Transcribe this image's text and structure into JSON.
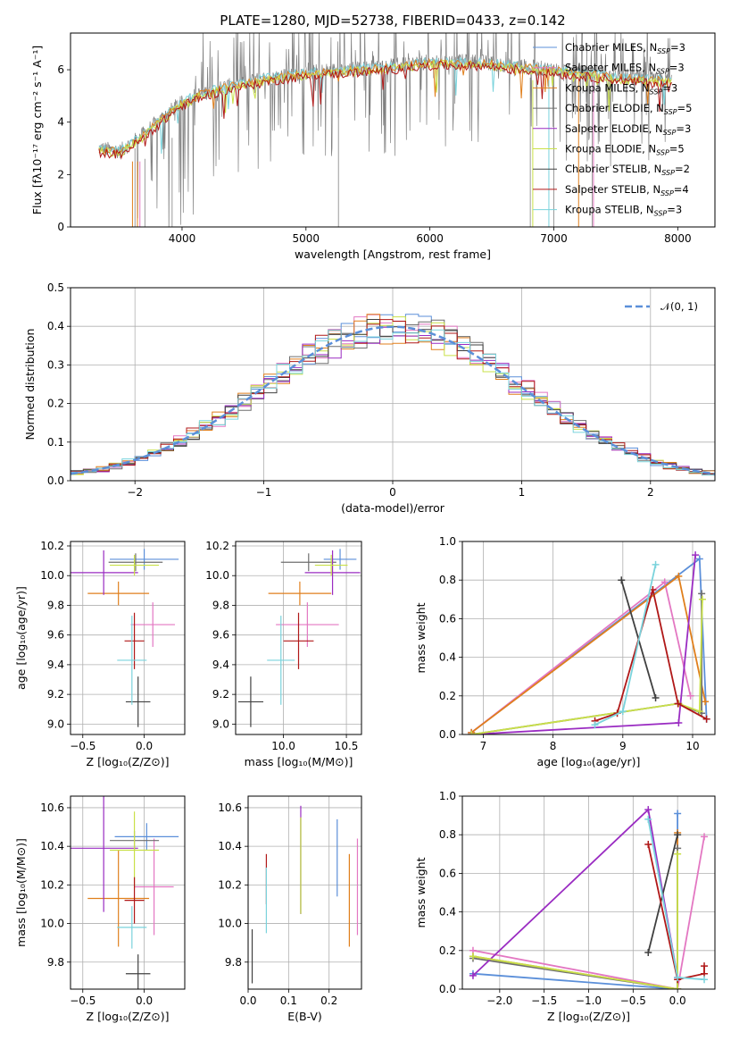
{
  "colors": {
    "c1": "#5b8fd9",
    "c2": "#e377c2",
    "c3": "#e07f1c",
    "c4": "#6f6f6f",
    "c5": "#9a2cc2",
    "c6": "#c9e048",
    "c7": "#404040",
    "c8": "#b01818",
    "c9": "#7ad3dc",
    "flux": "#808080"
  },
  "chart_data": [
    {
      "id": "spectrum",
      "type": "line",
      "title": "PLATE=1280, MJD=52738, FIBERID=0433, z=0.142",
      "xlabel": "wavelength [Angstrom, rest frame]",
      "ylabel": "Flux [fλ10⁻¹⁷ erg cm⁻² s⁻¹ A⁻¹]",
      "xlim": [
        3100,
        8300
      ],
      "ylim": [
        0,
        7.4
      ],
      "xticks": [
        4000,
        5000,
        6000,
        7000,
        8000
      ],
      "yticks": [
        0,
        2,
        4,
        6
      ],
      "continuum": [
        [
          3330,
          3.0
        ],
        [
          3500,
          2.9
        ],
        [
          3650,
          3.4
        ],
        [
          3800,
          4.0
        ],
        [
          3950,
          4.6
        ],
        [
          4100,
          5.0
        ],
        [
          4300,
          5.3
        ],
        [
          4500,
          5.5
        ],
        [
          4700,
          5.7
        ],
        [
          5000,
          5.9
        ],
        [
          5300,
          6.0
        ],
        [
          5600,
          6.1
        ],
        [
          6000,
          6.3
        ],
        [
          6400,
          6.3
        ],
        [
          6800,
          6.1
        ],
        [
          7200,
          5.9
        ],
        [
          7600,
          5.7
        ],
        [
          7900,
          5.6
        ]
      ],
      "legend": [
        {
          "label": "Chabrier MILES, N",
          "sub": "SSP",
          "suffix": "=3",
          "color_key": "c1"
        },
        {
          "label": "Salpeter MILES, N",
          "sub": "SSP",
          "suffix": "=3",
          "color_key": "c2"
        },
        {
          "label": "Kroupa MILES, N",
          "sub": "SSP",
          "suffix": "=3",
          "color_key": "c3"
        },
        {
          "label": "Chabrier ELODIE, N",
          "sub": "SSP",
          "suffix": "=5",
          "color_key": "c4"
        },
        {
          "label": "Salpeter ELODIE, N",
          "sub": "SSP",
          "suffix": "=3",
          "color_key": "c5"
        },
        {
          "label": "Kroupa ELODIE, N",
          "sub": "SSP",
          "suffix": "=5",
          "color_key": "c6"
        },
        {
          "label": "Chabrier STELIB, N",
          "sub": "SSP",
          "suffix": "=2",
          "color_key": "c7"
        },
        {
          "label": "Salpeter STELIB, N",
          "sub": "SSP",
          "suffix": "=4",
          "color_key": "c8"
        },
        {
          "label": "Kroupa STELIB, N",
          "sub": "SSP",
          "suffix": "=3",
          "color_key": "c9"
        }
      ]
    },
    {
      "id": "residuals",
      "type": "histogram",
      "xlabel": "(data-model)/error",
      "ylabel": "Normed distribution",
      "xlim": [
        -2.5,
        2.5
      ],
      "ylim": [
        0,
        0.5
      ],
      "xticks": [
        -2,
        -1,
        0,
        1,
        2
      ],
      "xticklabels": [
        "−2",
        "−1",
        "0",
        "1",
        "2"
      ],
      "yticks": [
        0,
        0.1,
        0.2,
        0.3,
        0.4,
        0.5
      ],
      "yticklabels": [
        "0.0",
        "0.1",
        "0.2",
        "0.3",
        "0.4",
        "0.5"
      ],
      "legend_label": "𝒩(0, 1)",
      "bin_start": -2.5,
      "bin_width": 0.1,
      "gaussian": {
        "mean": 0,
        "sigma": 1
      }
    },
    {
      "id": "age_vs_Z",
      "type": "errorbar",
      "xlabel": "Z [log₁₀(Z/Z⊙)]",
      "ylabel": "age  [log₁₀(age/yr)]",
      "xlim": [
        -0.6,
        0.33
      ],
      "ylim": [
        8.93,
        10.23
      ],
      "xticks": [
        -0.5,
        0.0
      ],
      "xticklabels": [
        "−0.5",
        "0.0"
      ],
      "yticks": [
        9.0,
        9.2,
        9.4,
        9.6,
        9.8,
        10.0,
        10.2
      ],
      "points": [
        {
          "c": "c1",
          "x": 0.0,
          "xe": 0.28,
          "y": 10.11,
          "ye": 0.07
        },
        {
          "c": "c2",
          "x": 0.07,
          "xe": 0.18,
          "y": 9.67,
          "ye": 0.15
        },
        {
          "c": "c3",
          "x": -0.21,
          "xe": 0.25,
          "y": 9.88,
          "ye": 0.08
        },
        {
          "c": "c4",
          "x": -0.07,
          "xe": 0.22,
          "y": 10.09,
          "ye": 0.06
        },
        {
          "c": "c5",
          "x": -0.33,
          "xe": 0.28,
          "y": 10.02,
          "ye": 0.15
        },
        {
          "c": "c6",
          "x": -0.08,
          "xe": 0.2,
          "y": 10.07,
          "ye": 0.07
        },
        {
          "c": "c7",
          "x": -0.05,
          "xe": 0.1,
          "y": 9.15,
          "ye": 0.17
        },
        {
          "c": "c8",
          "x": -0.08,
          "xe": 0.08,
          "y": 9.56,
          "ye": 0.19
        },
        {
          "c": "c9",
          "x": -0.1,
          "xe": 0.12,
          "y": 9.43,
          "ye": 0.3
        }
      ]
    },
    {
      "id": "age_vs_mass",
      "type": "errorbar",
      "xlabel": "mass [log₁₀(M/M⊙)]",
      "xlim": [
        9.62,
        10.62
      ],
      "ylim": [
        8.93,
        10.23
      ],
      "xticks": [
        10.0,
        10.5
      ],
      "xticklabels": [
        "10.0",
        "10.5"
      ],
      "yticks": [
        9.0,
        9.2,
        9.4,
        9.6,
        9.8,
        10.0,
        10.2
      ],
      "points": [
        {
          "c": "c1",
          "x": 10.45,
          "xe": 0.13,
          "y": 10.11,
          "ye": 0.07
        },
        {
          "c": "c2",
          "x": 10.19,
          "xe": 0.25,
          "y": 9.67,
          "ye": 0.15
        },
        {
          "c": "c3",
          "x": 10.13,
          "xe": 0.25,
          "y": 9.88,
          "ye": 0.08
        },
        {
          "c": "c4",
          "x": 10.2,
          "xe": 0.22,
          "y": 10.09,
          "ye": 0.06
        },
        {
          "c": "c5",
          "x": 10.39,
          "xe": 0.22,
          "y": 10.02,
          "ye": 0.15
        },
        {
          "c": "c6",
          "x": 10.38,
          "xe": 0.13,
          "y": 10.07,
          "ye": 0.07
        },
        {
          "c": "c7",
          "x": 9.74,
          "xe": 0.1,
          "y": 9.15,
          "ye": 0.17
        },
        {
          "c": "c8",
          "x": 10.12,
          "xe": 0.12,
          "y": 9.56,
          "ye": 0.19
        },
        {
          "c": "c9",
          "x": 9.98,
          "xe": 0.11,
          "y": 9.43,
          "ye": 0.3
        }
      ]
    },
    {
      "id": "weight_vs_age",
      "type": "line",
      "xlabel": "age  [log₁₀(age/yr)]",
      "ylabel": "mass weight",
      "xlim": [
        6.7,
        10.32
      ],
      "ylim": [
        0,
        1
      ],
      "xticks": [
        7,
        8,
        9,
        10
      ],
      "xticklabels": [
        "7",
        "8",
        "9",
        "10"
      ],
      "yticks": [
        0,
        0.2,
        0.4,
        0.6,
        0.8,
        1.0
      ],
      "yticklabels": [
        "0.0",
        "0.2",
        "0.4",
        "0.6",
        "0.8",
        "1.0"
      ],
      "series": [
        {
          "c": "c1",
          "x": [
            6.83,
            10.1,
            10.2
          ],
          "y": [
            0.01,
            0.91,
            0.08
          ]
        },
        {
          "c": "c2",
          "x": [
            6.83,
            9.6,
            9.97
          ],
          "y": [
            0.01,
            0.79,
            0.2
          ]
        },
        {
          "c": "c3",
          "x": [
            6.83,
            9.8,
            10.18
          ],
          "y": [
            0.01,
            0.82,
            0.17
          ]
        },
        {
          "c": "c4",
          "x": [
            6.83,
            9.8,
            10.13,
            10.13
          ],
          "y": [
            0.0,
            0.16,
            0.11,
            0.73
          ]
        },
        {
          "c": "c5",
          "x": [
            6.83,
            9.8,
            10.04
          ],
          "y": [
            0.0,
            0.06,
            0.93
          ]
        },
        {
          "c": "c6",
          "x": [
            6.83,
            9.8,
            10.1,
            10.14
          ],
          "y": [
            0.0,
            0.16,
            0.12,
            0.7
          ]
        },
        {
          "c": "c7",
          "x": [
            8.98,
            9.47
          ],
          "y": [
            0.8,
            0.19
          ]
        },
        {
          "c": "c8",
          "x": [
            8.6,
            8.92,
            9.43,
            9.79,
            10.2
          ],
          "y": [
            0.07,
            0.11,
            0.75,
            0.16,
            0.08
          ]
        },
        {
          "c": "c9",
          "x": [
            8.6,
            9.0,
            9.47
          ],
          "y": [
            0.05,
            0.12,
            0.88
          ]
        }
      ]
    },
    {
      "id": "mass_vs_Z",
      "type": "errorbar",
      "xlabel": "Z [log₁₀(Z/Z⊙)]",
      "ylabel": "mass [log₁₀(M/M⊙)]",
      "xlim": [
        -0.6,
        0.33
      ],
      "ylim": [
        9.66,
        10.66
      ],
      "xticks": [
        -0.5,
        0.0
      ],
      "xticklabels": [
        "−0.5",
        "0.0"
      ],
      "yticks": [
        9.8,
        10.0,
        10.2,
        10.4,
        10.6
      ],
      "points": [
        {
          "c": "c1",
          "x": 0.02,
          "xe": 0.26,
          "y": 10.45,
          "ye": 0.07
        },
        {
          "c": "c2",
          "x": 0.08,
          "xe": 0.16,
          "y": 10.19,
          "ye": 0.25
        },
        {
          "c": "c3",
          "x": -0.21,
          "xe": 0.25,
          "y": 10.13,
          "ye": 0.25
        },
        {
          "c": "c4",
          "x": -0.08,
          "xe": 0.2,
          "y": 10.43,
          "ye": 0.05
        },
        {
          "c": "c5",
          "x": -0.33,
          "xe": 0.28,
          "y": 10.39,
          "ye": 0.33
        },
        {
          "c": "c6",
          "x": -0.08,
          "xe": 0.2,
          "y": 10.38,
          "ye": 0.2
        },
        {
          "c": "c7",
          "x": -0.05,
          "xe": 0.1,
          "y": 9.74,
          "ye": 0.1
        },
        {
          "c": "c8",
          "x": -0.08,
          "xe": 0.08,
          "y": 10.12,
          "ye": 0.12
        },
        {
          "c": "c9",
          "x": -0.1,
          "xe": 0.12,
          "y": 9.98,
          "ye": 0.11
        }
      ]
    },
    {
      "id": "mass_vs_EBV",
      "type": "errorbar",
      "xlabel": "E(B-V)",
      "xlim": [
        0.0,
        0.28
      ],
      "ylim": [
        9.66,
        10.66
      ],
      "xticks": [
        0.0,
        0.1,
        0.2
      ],
      "xticklabels": [
        "0.0",
        "0.1",
        "0.2"
      ],
      "yticks": [
        9.8,
        10.0,
        10.2,
        10.4,
        10.6
      ],
      "points": [
        {
          "c": "c1",
          "x": 0.22,
          "xe": 0,
          "y": 10.34,
          "ye": 0.2
        },
        {
          "c": "c2",
          "x": 0.27,
          "xe": 0,
          "y": 10.19,
          "ye": 0.25
        },
        {
          "c": "c3",
          "x": 0.25,
          "xe": 0,
          "y": 10.12,
          "ye": 0.24
        },
        {
          "c": "c4",
          "x": 0.13,
          "xe": 0,
          "y": 10.3,
          "ye": 0.25
        },
        {
          "c": "c5",
          "x": 0.13,
          "xe": 0,
          "y": 10.33,
          "ye": 0.28
        },
        {
          "c": "c6",
          "x": 0.13,
          "xe": 0,
          "y": 10.3,
          "ye": 0.25
        },
        {
          "c": "c7",
          "x": 0.01,
          "xe": 0,
          "y": 9.83,
          "ye": 0.14
        },
        {
          "c": "c8",
          "x": 0.045,
          "xe": 0,
          "y": 10.23,
          "ye": 0.13
        },
        {
          "c": "c9",
          "x": 0.045,
          "xe": 0,
          "y": 10.12,
          "ye": 0.17
        }
      ]
    },
    {
      "id": "weight_vs_Z",
      "type": "line",
      "xlabel": "Z [log₁₀(Z/Z⊙)]",
      "ylabel": "mass weight",
      "xlim": [
        -2.42,
        0.42
      ],
      "ylim": [
        0,
        1
      ],
      "xticks": [
        -2.0,
        -1.5,
        -1.0,
        -0.5,
        0.0
      ],
      "xticklabels": [
        "−2.0",
        "−1.5",
        "−1.0",
        "−0.5",
        "0.0"
      ],
      "yticks": [
        0,
        0.2,
        0.4,
        0.6,
        0.8,
        1.0
      ],
      "yticklabels": [
        "0.0",
        "0.2",
        "0.4",
        "0.6",
        "0.8",
        "1.0"
      ],
      "series": [
        {
          "c": "c1",
          "x": [
            -2.3,
            0.0,
            0.0
          ],
          "y": [
            0.08,
            0.0,
            0.91
          ]
        },
        {
          "c": "c2",
          "x": [
            -2.3,
            0.0,
            0.3
          ],
          "y": [
            0.2,
            0.0,
            0.79
          ]
        },
        {
          "c": "c3",
          "x": [
            -2.3,
            0.0,
            0.0
          ],
          "y": [
            0.17,
            0.0,
            0.81
          ]
        },
        {
          "c": "c4",
          "x": [
            -2.3,
            0.0,
            0.0
          ],
          "y": [
            0.16,
            0.0,
            0.73
          ]
        },
        {
          "c": "c5",
          "x": [
            -2.3,
            -0.33,
            0.0
          ],
          "y": [
            0.07,
            0.93,
            0.06
          ]
        },
        {
          "c": "c6",
          "x": [
            -2.3,
            0.0,
            0.0
          ],
          "y": [
            0.17,
            0.0,
            0.7
          ]
        },
        {
          "c": "c7",
          "x": [
            -0.33,
            0.0
          ],
          "y": [
            0.19,
            0.8
          ]
        },
        {
          "c": "c8",
          "x": [
            -0.33,
            0.0,
            0.3,
            0.3
          ],
          "y": [
            0.75,
            0.05,
            0.08,
            0.12
          ]
        },
        {
          "c": "c9",
          "x": [
            -0.33,
            0.0,
            0.3
          ],
          "y": [
            0.88,
            0.06,
            0.05
          ]
        }
      ]
    }
  ]
}
